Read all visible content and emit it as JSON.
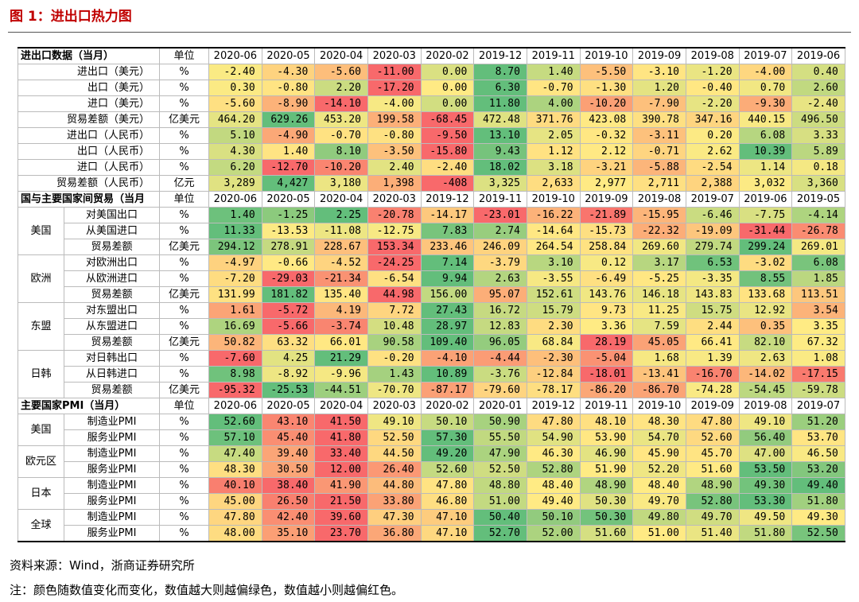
{
  "header": {
    "title": "图 1：进出口热力图"
  },
  "sections": [
    {
      "header": [
        "进出口数据（当月）",
        "单位",
        "2020-06",
        "2020-05",
        "2020-04",
        "2020-03",
        "2020-02",
        "2019-12",
        "2019-11",
        "2019-10",
        "2019-09",
        "2019-08",
        "2019-07",
        "2019-06"
      ],
      "rows": [
        {
          "label": "进出口（美元）",
          "unit": "%",
          "values": [
            "-2.40",
            "-4.30",
            "-5.60",
            "-11.00",
            "0.00",
            "8.70",
            "1.40",
            "-5.50",
            "-3.10",
            "-1.20",
            "-4.00",
            "0.40"
          ]
        },
        {
          "label": "出口（美元）",
          "unit": "%",
          "values": [
            "0.30",
            "-0.80",
            "2.20",
            "-17.20",
            "0.00",
            "6.30",
            "-0.70",
            "-1.30",
            "1.20",
            "-0.40",
            "0.70",
            "2.60"
          ]
        },
        {
          "label": "进口（美元）",
          "unit": "%",
          "values": [
            "-5.60",
            "-8.90",
            "-14.10",
            "-4.00",
            "0.00",
            "11.80",
            "4.00",
            "-10.20",
            "-7.90",
            "-2.20",
            "-9.30",
            "-2.40"
          ]
        },
        {
          "label": "贸易差额（美元）",
          "unit": "亿美元",
          "values": [
            "464.20",
            "629.26",
            "453.20",
            "199.58",
            "-68.45",
            "472.48",
            "371.76",
            "423.08",
            "390.78",
            "347.16",
            "440.15",
            "496.50"
          ]
        },
        {
          "label": "进出口（人民币）",
          "unit": "%",
          "values": [
            "5.10",
            "-4.90",
            "-0.70",
            "-0.80",
            "-9.50",
            "13.10",
            "2.05",
            "-0.32",
            "-3.11",
            "0.20",
            "6.08",
            "3.33"
          ]
        },
        {
          "label": "出口（人民币）",
          "unit": "%",
          "values": [
            "4.30",
            "1.40",
            "8.10",
            "-3.50",
            "-15.80",
            "9.43",
            "1.12",
            "2.12",
            "-0.71",
            "2.62",
            "10.39",
            "5.89"
          ]
        },
        {
          "label": "进口（人民币）",
          "unit": "%",
          "values": [
            "6.20",
            "-12.70",
            "-10.20",
            "2.40",
            "-2.40",
            "18.02",
            "3.18",
            "-3.21",
            "-5.88",
            "-2.54",
            "1.14",
            "0.18"
          ]
        },
        {
          "label": "贸易差额（人民币）",
          "unit": "亿元",
          "values": [
            "3,289",
            "4,427",
            "3,180",
            "1,398",
            "-408",
            "3,325",
            "2,633",
            "2,977",
            "2,711",
            "2,388",
            "3,032",
            "3,360"
          ]
        }
      ]
    },
    {
      "header": [
        "国与主要国家间贸易（当月",
        "单位",
        "2020-06",
        "2020-05",
        "2020-04",
        "2020-03",
        "2019-12",
        "2019-11",
        "2019-10",
        "2019-09",
        "2019-08",
        "2019-07",
        "2019-06",
        "2019-05"
      ],
      "groups": [
        {
          "name": "美国",
          "rows": [
            {
              "label": "对美国出口",
              "unit": "%",
              "values": [
                "1.40",
                "-1.25",
                "2.25",
                "-20.78",
                "-14.17",
                "-23.01",
                "-16.22",
                "-21.89",
                "-15.95",
                "-6.46",
                "-7.75",
                "-4.14"
              ]
            },
            {
              "label": "从美国进口",
              "unit": "%",
              "values": [
                "11.33",
                "-13.53",
                "-11.08",
                "-12.75",
                "7.83",
                "2.74",
                "-14.64",
                "-15.73",
                "-22.32",
                "-19.09",
                "-31.44",
                "-26.78"
              ]
            },
            {
              "label": "贸易差额",
              "unit": "亿美元",
              "values": [
                "294.12",
                "278.91",
                "228.67",
                "153.34",
                "233.46",
                "246.09",
                "264.54",
                "258.84",
                "269.60",
                "279.74",
                "299.24",
                "269.01"
              ]
            }
          ]
        },
        {
          "name": "欧洲",
          "rows": [
            {
              "label": "对欧洲出口",
              "unit": "%",
              "values": [
                "-4.97",
                "-0.66",
                "-4.52",
                "-24.25",
                "7.14",
                "-3.79",
                "3.10",
                "0.12",
                "3.17",
                "6.53",
                "-3.02",
                "6.08"
              ]
            },
            {
              "label": "从欧洲进口",
              "unit": "%",
              "values": [
                "-7.20",
                "-29.03",
                "-21.34",
                "-6.54",
                "9.94",
                "2.63",
                "-3.55",
                "-6.49",
                "-5.25",
                "-3.35",
                "8.55",
                "1.85"
              ]
            },
            {
              "label": "贸易差额",
              "unit": "亿美元",
              "values": [
                "131.99",
                "181.82",
                "135.40",
                "44.98",
                "156.00",
                "95.07",
                "152.61",
                "143.76",
                "146.18",
                "143.83",
                "133.68",
                "113.51"
              ]
            }
          ]
        },
        {
          "name": "东盟",
          "rows": [
            {
              "label": "对东盟出口",
              "unit": "%",
              "values": [
                "1.61",
                "-5.72",
                "4.19",
                "7.72",
                "27.43",
                "16.72",
                "15.79",
                "9.73",
                "11.25",
                "15.75",
                "12.92",
                "3.54"
              ]
            },
            {
              "label": "从东盟进口",
              "unit": "%",
              "values": [
                "16.69",
                "-5.66",
                "-3.74",
                "10.48",
                "28.97",
                "12.83",
                "2.30",
                "3.36",
                "7.59",
                "2.44",
                "0.35",
                "3.35"
              ]
            },
            {
              "label": "贸易差额",
              "unit": "亿美元",
              "values": [
                "50.82",
                "63.32",
                "66.01",
                "90.58",
                "109.40",
                "96.05",
                "68.84",
                "28.19",
                "45.05",
                "66.41",
                "82.10",
                "67.32"
              ]
            }
          ]
        },
        {
          "name": "日韩",
          "rows": [
            {
              "label": "对日韩出口",
              "unit": "%",
              "values": [
                "-7.60",
                "4.25",
                "21.29",
                "-0.20",
                "-4.10",
                "-4.44",
                "-2.30",
                "-5.04",
                "1.68",
                "1.39",
                "2.63",
                "1.08"
              ]
            },
            {
              "label": "从日韩进口",
              "unit": "%",
              "values": [
                "8.98",
                "-8.92",
                "-9.96",
                "1.43",
                "10.89",
                "-3.76",
                "-12.84",
                "-18.01",
                "-13.41",
                "-16.70",
                "-14.02",
                "-17.15"
              ]
            },
            {
              "label": "贸易差额",
              "unit": "亿美元",
              "values": [
                "-95.32",
                "-25.53",
                "-44.51",
                "-70.70",
                "-87.17",
                "-79.60",
                "-78.17",
                "-86.20",
                "-86.70",
                "-74.28",
                "-54.45",
                "-59.78"
              ]
            }
          ]
        }
      ]
    },
    {
      "header": [
        "主要国家PMI（当月）",
        "单位",
        "2020-06",
        "2020-05",
        "2020-04",
        "2020-03",
        "2020-02",
        "2020-01",
        "2019-12",
        "2019-11",
        "2019-10",
        "2019-09",
        "2019-08",
        "2019-07"
      ],
      "groups": [
        {
          "name": "美国",
          "rows": [
            {
              "label": "制造业PMI",
              "unit": "%",
              "values": [
                "52.60",
                "43.10",
                "41.50",
                "49.10",
                "50.10",
                "50.90",
                "47.80",
                "48.10",
                "48.30",
                "47.80",
                "49.10",
                "51.20"
              ]
            },
            {
              "label": "服务业PMI",
              "unit": "%",
              "values": [
                "57.10",
                "45.40",
                "41.80",
                "52.50",
                "57.30",
                "55.50",
                "54.90",
                "53.90",
                "54.70",
                "52.60",
                "56.40",
                "53.70"
              ]
            }
          ]
        },
        {
          "name": "欧元区",
          "rows": [
            {
              "label": "制造业PMI",
              "unit": "%",
              "values": [
                "47.40",
                "39.40",
                "33.40",
                "44.50",
                "49.20",
                "47.90",
                "46.30",
                "46.90",
                "45.90",
                "45.70",
                "47.00",
                "46.50"
              ]
            },
            {
              "label": "服务业PMI",
              "unit": "%",
              "values": [
                "48.30",
                "30.50",
                "12.00",
                "26.40",
                "52.60",
                "52.50",
                "52.80",
                "51.90",
                "52.20",
                "51.60",
                "53.50",
                "53.20"
              ]
            }
          ]
        },
        {
          "name": "日本",
          "rows": [
            {
              "label": "制造业PMI",
              "unit": "%",
              "values": [
                "40.10",
                "38.40",
                "41.90",
                "44.80",
                "47.80",
                "48.80",
                "48.40",
                "48.90",
                "48.40",
                "48.90",
                "49.30",
                "49.40"
              ]
            },
            {
              "label": "服务业PMI",
              "unit": "%",
              "values": [
                "45.00",
                "26.50",
                "21.50",
                "33.80",
                "46.80",
                "51.00",
                "49.40",
                "50.30",
                "49.70",
                "52.80",
                "53.30",
                "51.80"
              ]
            }
          ]
        },
        {
          "name": "全球",
          "rows": [
            {
              "label": "制造业PMI",
              "unit": "%",
              "values": [
                "47.80",
                "42.40",
                "39.60",
                "47.30",
                "47.10",
                "50.40",
                "50.10",
                "50.30",
                "49.80",
                "49.70",
                "49.50",
                "49.30"
              ]
            },
            {
              "label": "服务业PMI",
              "unit": "%",
              "values": [
                "48.00",
                "35.10",
                "23.70",
                "36.80",
                "47.10",
                "52.70",
                "52.00",
                "51.60",
                "51.00",
                "51.40",
                "51.80",
                "52.50"
              ]
            }
          ]
        }
      ]
    }
  ],
  "footer": {
    "source": "资料来源：Wind，浙商证券研究所",
    "note": "注：颜色随数值变化而变化，数值越大则越偏绿色，数值越小则越偏红色。"
  }
}
